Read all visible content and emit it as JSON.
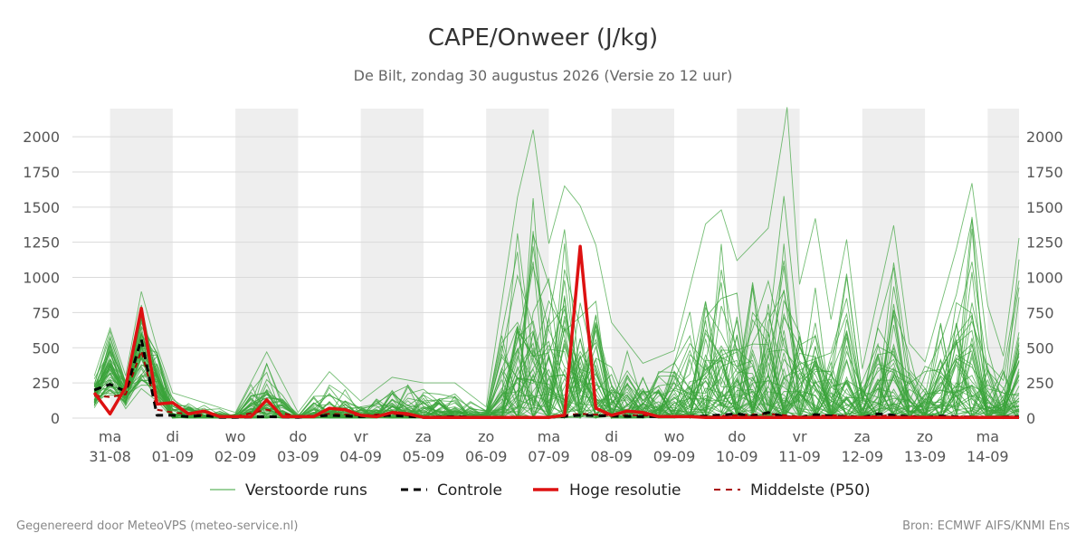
{
  "chart_data": {
    "type": "line",
    "title": "CAPE/Onweer (J/kg)",
    "subtitle": "De Bilt, zondag 30 augustus 2026 (Versie zo 12 uur)",
    "ylim": [
      0,
      2200
    ],
    "yticks": [
      0,
      250,
      500,
      750,
      1000,
      1250,
      1500,
      1750,
      2000
    ],
    "x_range_days": [
      -0.6,
      14.5
    ],
    "categories": [
      {
        "day": "ma",
        "date": "31-08"
      },
      {
        "day": "di",
        "date": "01-09"
      },
      {
        "day": "wo",
        "date": "02-09"
      },
      {
        "day": "do",
        "date": "03-09"
      },
      {
        "day": "vr",
        "date": "04-09"
      },
      {
        "day": "za",
        "date": "05-09"
      },
      {
        "day": "zo",
        "date": "06-09"
      },
      {
        "day": "ma",
        "date": "07-09"
      },
      {
        "day": "di",
        "date": "08-09"
      },
      {
        "day": "wo",
        "date": "09-09"
      },
      {
        "day": "do",
        "date": "10-09"
      },
      {
        "day": "vr",
        "date": "11-09"
      },
      {
        "day": "za",
        "date": "12-09"
      },
      {
        "day": "zo",
        "date": "13-09"
      },
      {
        "day": "ma",
        "date": "14-09"
      }
    ],
    "shaded_bands": true,
    "grid": true,
    "legend_placement": "bottom",
    "legend": [
      {
        "label": "Verstoorde runs",
        "color": "#3aa33a",
        "style": "thin"
      },
      {
        "label": "Controle",
        "color": "#000000",
        "style": "dashed"
      },
      {
        "label": "Hoge resolutie",
        "color": "#dd1111",
        "style": "thick"
      },
      {
        "label": "Middelste (P50)",
        "color": "#aa0000",
        "style": "dashed-thin"
      }
    ],
    "series": [
      {
        "name": "Hoge resolutie",
        "color": "#dd1111",
        "points": [
          [
            -0.25,
            180
          ],
          [
            0,
            30
          ],
          [
            0.25,
            220
          ],
          [
            0.5,
            780
          ],
          [
            0.75,
            100
          ],
          [
            1,
            110
          ],
          [
            1.25,
            30
          ],
          [
            1.5,
            50
          ],
          [
            1.75,
            10
          ],
          [
            2,
            10
          ],
          [
            2.25,
            10
          ],
          [
            2.5,
            130
          ],
          [
            2.75,
            10
          ],
          [
            3,
            10
          ],
          [
            3.25,
            10
          ],
          [
            3.5,
            70
          ],
          [
            3.75,
            60
          ],
          [
            4,
            20
          ],
          [
            4.25,
            10
          ],
          [
            4.5,
            40
          ],
          [
            4.75,
            30
          ],
          [
            5,
            5
          ],
          [
            5.25,
            5
          ],
          [
            5.5,
            5
          ],
          [
            5.75,
            5
          ],
          [
            6,
            5
          ],
          [
            6.25,
            5
          ],
          [
            6.5,
            5
          ],
          [
            6.75,
            5
          ],
          [
            7,
            5
          ],
          [
            7.25,
            20
          ],
          [
            7.5,
            1220
          ],
          [
            7.75,
            70
          ],
          [
            8,
            20
          ],
          [
            8.25,
            50
          ],
          [
            8.5,
            40
          ],
          [
            8.75,
            10
          ],
          [
            9,
            10
          ],
          [
            9.25,
            10
          ],
          [
            9.5,
            5
          ],
          [
            9.75,
            5
          ],
          [
            10,
            5
          ],
          [
            10.25,
            5
          ],
          [
            10.5,
            5
          ],
          [
            10.75,
            5
          ],
          [
            11,
            5
          ],
          [
            11.25,
            5
          ],
          [
            11.5,
            5
          ],
          [
            11.75,
            5
          ],
          [
            12,
            5
          ],
          [
            12.25,
            5
          ],
          [
            12.5,
            5
          ],
          [
            12.75,
            5
          ],
          [
            13,
            5
          ],
          [
            13.25,
            5
          ],
          [
            13.5,
            5
          ],
          [
            13.75,
            5
          ],
          [
            14,
            5
          ],
          [
            14.25,
            5
          ],
          [
            14.5,
            5
          ]
        ]
      },
      {
        "name": "Controle",
        "color": "#000000",
        "points": [
          [
            -0.25,
            200
          ],
          [
            0,
            240
          ],
          [
            0.25,
            190
          ],
          [
            0.5,
            560
          ],
          [
            0.75,
            20
          ],
          [
            1,
            20
          ],
          [
            1.25,
            10
          ],
          [
            1.5,
            20
          ],
          [
            1.75,
            5
          ],
          [
            2,
            5
          ],
          [
            2.5,
            10
          ],
          [
            3,
            5
          ],
          [
            3.5,
            20
          ],
          [
            4,
            10
          ],
          [
            4.5,
            20
          ],
          [
            5,
            5
          ],
          [
            5.5,
            10
          ],
          [
            6,
            5
          ],
          [
            6.5,
            5
          ],
          [
            7,
            5
          ],
          [
            7.5,
            20
          ],
          [
            8,
            15
          ],
          [
            8.5,
            10
          ],
          [
            9,
            10
          ],
          [
            9.5,
            15
          ],
          [
            10,
            30
          ],
          [
            10.25,
            15
          ],
          [
            10.5,
            40
          ],
          [
            10.75,
            10
          ],
          [
            11,
            5
          ],
          [
            11.25,
            25
          ],
          [
            11.5,
            15
          ],
          [
            11.75,
            10
          ],
          [
            12,
            5
          ],
          [
            12.25,
            30
          ],
          [
            12.5,
            20
          ],
          [
            12.75,
            10
          ],
          [
            13,
            5
          ],
          [
            13.25,
            15
          ],
          [
            13.5,
            10
          ],
          [
            14,
            5
          ],
          [
            14.5,
            10
          ]
        ]
      },
      {
        "name": "Middelste (P50)",
        "color": "#aa0000",
        "points": [
          [
            -0.25,
            160
          ],
          [
            0,
            150
          ],
          [
            0.25,
            170
          ],
          [
            0.5,
            480
          ],
          [
            0.75,
            60
          ],
          [
            1,
            40
          ],
          [
            1.5,
            20
          ],
          [
            2,
            10
          ],
          [
            2.5,
            60
          ],
          [
            3,
            10
          ],
          [
            3.5,
            30
          ],
          [
            4,
            20
          ],
          [
            4.5,
            30
          ],
          [
            5,
            10
          ],
          [
            5.5,
            10
          ],
          [
            6,
            5
          ],
          [
            6.5,
            5
          ],
          [
            7,
            10
          ],
          [
            7.5,
            30
          ],
          [
            8,
            20
          ],
          [
            8.5,
            20
          ],
          [
            9,
            10
          ],
          [
            9.5,
            10
          ],
          [
            10,
            20
          ],
          [
            10.5,
            30
          ],
          [
            11,
            10
          ],
          [
            11.5,
            20
          ],
          [
            12,
            10
          ],
          [
            12.5,
            20
          ],
          [
            13,
            10
          ],
          [
            13.5,
            10
          ],
          [
            14,
            10
          ],
          [
            14.5,
            10
          ]
        ]
      },
      {
        "name": "Verstoorde runs",
        "color": "#3aa33a",
        "count": 50,
        "max_envelope": [
          [
            -0.25,
            300
          ],
          [
            0,
            640
          ],
          [
            0.25,
            300
          ],
          [
            0.5,
            900
          ],
          [
            0.75,
            500
          ],
          [
            1,
            180
          ],
          [
            1.5,
            110
          ],
          [
            2,
            40
          ],
          [
            2.5,
            470
          ],
          [
            3,
            40
          ],
          [
            3.5,
            330
          ],
          [
            4,
            120
          ],
          [
            4.5,
            290
          ],
          [
            5,
            250
          ],
          [
            5.5,
            250
          ],
          [
            6,
            80
          ],
          [
            6.5,
            1570
          ],
          [
            6.75,
            2050
          ],
          [
            7,
            1240
          ],
          [
            7.25,
            1650
          ],
          [
            7.5,
            1510
          ],
          [
            7.75,
            1230
          ],
          [
            8,
            680
          ],
          [
            8.5,
            390
          ],
          [
            9,
            480
          ],
          [
            9.5,
            1380
          ],
          [
            9.75,
            1480
          ],
          [
            10,
            1120
          ],
          [
            10.5,
            1350
          ],
          [
            10.75,
            2050
          ],
          [
            10.8,
            2210
          ],
          [
            11,
            950
          ],
          [
            11.25,
            1420
          ],
          [
            11.5,
            700
          ],
          [
            11.75,
            1270
          ],
          [
            12,
            350
          ],
          [
            12.5,
            1370
          ],
          [
            12.75,
            530
          ],
          [
            13,
            400
          ],
          [
            13.5,
            1200
          ],
          [
            13.75,
            1670
          ],
          [
            14,
            800
          ],
          [
            14.25,
            440
          ],
          [
            14.5,
            1280
          ]
        ]
      }
    ]
  },
  "legend_labels": {
    "perturbed": "Verstoorde runs",
    "control": "Controle",
    "hires": "Hoge resolutie",
    "median": "Middelste (P50)"
  },
  "footer": {
    "left": "Gegenereerd door MeteoVPS (meteo-service.nl)",
    "right": "Bron: ECMWF AIFS/KNMI Ens"
  }
}
